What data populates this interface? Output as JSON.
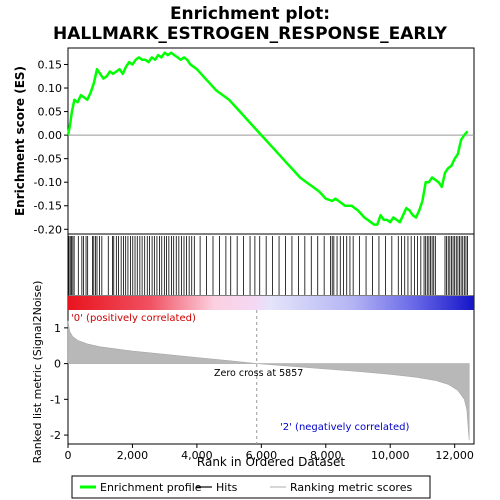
{
  "chart_data": {
    "type": "line",
    "title": "Enrichment plot:\nHALLMARK_ESTROGEN_RESPONSE_EARLY",
    "title_lines": [
      "Enrichment plot:",
      "HALLMARK_ESTROGEN_RESPONSE_EARLY"
    ],
    "es_panel": {
      "ylabel": "Enrichment score (ES)",
      "ylim": [
        -0.21,
        0.185
      ],
      "yticks": [
        -0.2,
        -0.15,
        -0.1,
        -0.05,
        0.0,
        0.05,
        0.1,
        0.15
      ],
      "ytick_labels": [
        "-0.20",
        "-0.15",
        "-0.10",
        "-0.05",
        "0.00",
        "0.05",
        "0.10",
        "0.15"
      ],
      "series": [
        {
          "name": "Enrichment profile",
          "color": "#00ff00",
          "x": [
            0,
            60,
            120,
            200,
            300,
            400,
            500,
            600,
            700,
            800,
            900,
            1000,
            1100,
            1200,
            1300,
            1400,
            1500,
            1600,
            1700,
            1800,
            1900,
            2000,
            2100,
            2200,
            2300,
            2400,
            2500,
            2600,
            2700,
            2800,
            2900,
            3000,
            3100,
            3200,
            3300,
            3400,
            3500,
            3600,
            3700,
            3800,
            3900,
            4000,
            4200,
            4400,
            4600,
            4800,
            5000,
            5200,
            5400,
            5600,
            5800,
            6000,
            6200,
            6400,
            6600,
            6800,
            7000,
            7200,
            7400,
            7600,
            7800,
            8000,
            8200,
            8300,
            8400,
            8600,
            8800,
            9000,
            9200,
            9400,
            9500,
            9600,
            9700,
            9800,
            9900,
            10000,
            10100,
            10200,
            10300,
            10400,
            10500,
            10600,
            10700,
            10800,
            10900,
            11000,
            11100,
            11200,
            11300,
            11400,
            11500,
            11600,
            11700,
            11800,
            11900,
            12000,
            12100,
            12200,
            12300,
            12400
          ],
          "y": [
            0.0,
            0.02,
            0.05,
            0.075,
            0.07,
            0.085,
            0.08,
            0.075,
            0.09,
            0.11,
            0.14,
            0.13,
            0.12,
            0.125,
            0.135,
            0.13,
            0.135,
            0.14,
            0.13,
            0.145,
            0.155,
            0.15,
            0.16,
            0.165,
            0.16,
            0.16,
            0.155,
            0.165,
            0.16,
            0.17,
            0.165,
            0.175,
            0.17,
            0.175,
            0.17,
            0.165,
            0.16,
            0.165,
            0.16,
            0.15,
            0.145,
            0.14,
            0.125,
            0.11,
            0.095,
            0.085,
            0.075,
            0.06,
            0.045,
            0.03,
            0.015,
            0.0,
            -0.015,
            -0.03,
            -0.045,
            -0.06,
            -0.075,
            -0.09,
            -0.1,
            -0.11,
            -0.12,
            -0.135,
            -0.14,
            -0.135,
            -0.14,
            -0.15,
            -0.15,
            -0.16,
            -0.175,
            -0.185,
            -0.19,
            -0.19,
            -0.17,
            -0.18,
            -0.18,
            -0.185,
            -0.175,
            -0.18,
            -0.185,
            -0.17,
            -0.155,
            -0.16,
            -0.17,
            -0.175,
            -0.16,
            -0.14,
            -0.1,
            -0.1,
            -0.09,
            -0.095,
            -0.1,
            -0.11,
            -0.08,
            -0.07,
            -0.065,
            -0.05,
            -0.04,
            -0.01,
            0.0,
            0.008
          ]
        }
      ]
    },
    "hits": [
      30,
      70,
      110,
      150,
      190,
      320,
      430,
      480,
      560,
      610,
      760,
      800,
      850,
      900,
      980,
      1050,
      1250,
      1380,
      1420,
      1500,
      1570,
      1650,
      1720,
      1790,
      1860,
      1940,
      2010,
      2080,
      2150,
      2230,
      2300,
      2380,
      2460,
      2530,
      2610,
      2680,
      2760,
      2840,
      2910,
      2990,
      3060,
      3130,
      3210,
      3280,
      3360,
      3440,
      3520,
      3600,
      3680,
      3760,
      3840,
      3920,
      4100,
      4300,
      4500,
      4700,
      4900,
      5050,
      5250,
      5450,
      5650,
      5800,
      5950,
      6150,
      6350,
      6550,
      6750,
      6950,
      7150,
      7350,
      7550,
      7750,
      7950,
      8150,
      8200,
      8250,
      8350,
      8450,
      8550,
      8650,
      8750,
      8850,
      9050,
      9250,
      9450,
      9650,
      9850,
      10050,
      10250,
      10350,
      10450,
      10550,
      10650,
      10750,
      10850,
      10950,
      11050,
      11100,
      11150,
      11200,
      11250,
      11300,
      11350,
      11400,
      11700,
      11750,
      11800,
      11850,
      11900,
      11950,
      12000,
      12050,
      12100,
      12150,
      12200,
      12250,
      12300,
      12350,
      12400
    ],
    "ranking_panel": {
      "ylabel": "Ranked list metric (Signal2Noise)",
      "xlabel": "Rank in Ordered Dataset",
      "ylim": [
        -2.25,
        1.5
      ],
      "yticks": [
        -2,
        -1,
        0,
        1
      ],
      "ytick_labels": [
        "-2",
        "-1",
        "0",
        "1"
      ],
      "xlim": [
        0,
        12600
      ],
      "xticks": [
        0,
        2000,
        4000,
        6000,
        8000,
        10000,
        12000
      ],
      "xtick_labels": [
        "0",
        "2,000",
        "4,000",
        "6,000",
        "8,000",
        "10,000",
        "12,000"
      ],
      "metric_profile": {
        "x": [
          0,
          50,
          150,
          300,
          600,
          1000,
          1500,
          2000,
          3000,
          4000,
          5000,
          5857,
          7000,
          8000,
          9000,
          10000,
          10800,
          11400,
          11800,
          12100,
          12300,
          12380,
          12420,
          12450
        ],
        "y": [
          1.2,
          0.9,
          0.75,
          0.65,
          0.55,
          0.47,
          0.41,
          0.35,
          0.26,
          0.17,
          0.08,
          0.0,
          -0.08,
          -0.15,
          -0.22,
          -0.3,
          -0.38,
          -0.47,
          -0.58,
          -0.75,
          -1.0,
          -1.3,
          -1.8,
          -2.15
        ]
      },
      "zero_cross_label": "Zero cross at 5857",
      "zero_cross": 5857,
      "pos_label": "'0' (positively correlated)",
      "neg_label": "'2' (negatively correlated)"
    },
    "legend": {
      "placement": "bottom",
      "items": [
        {
          "label": "Enrichment profile",
          "color": "#00ff00"
        },
        {
          "label": "Hits",
          "color": "#000000"
        },
        {
          "label": "Ranking metric scores",
          "color": "#bbbbbb"
        }
      ]
    }
  }
}
